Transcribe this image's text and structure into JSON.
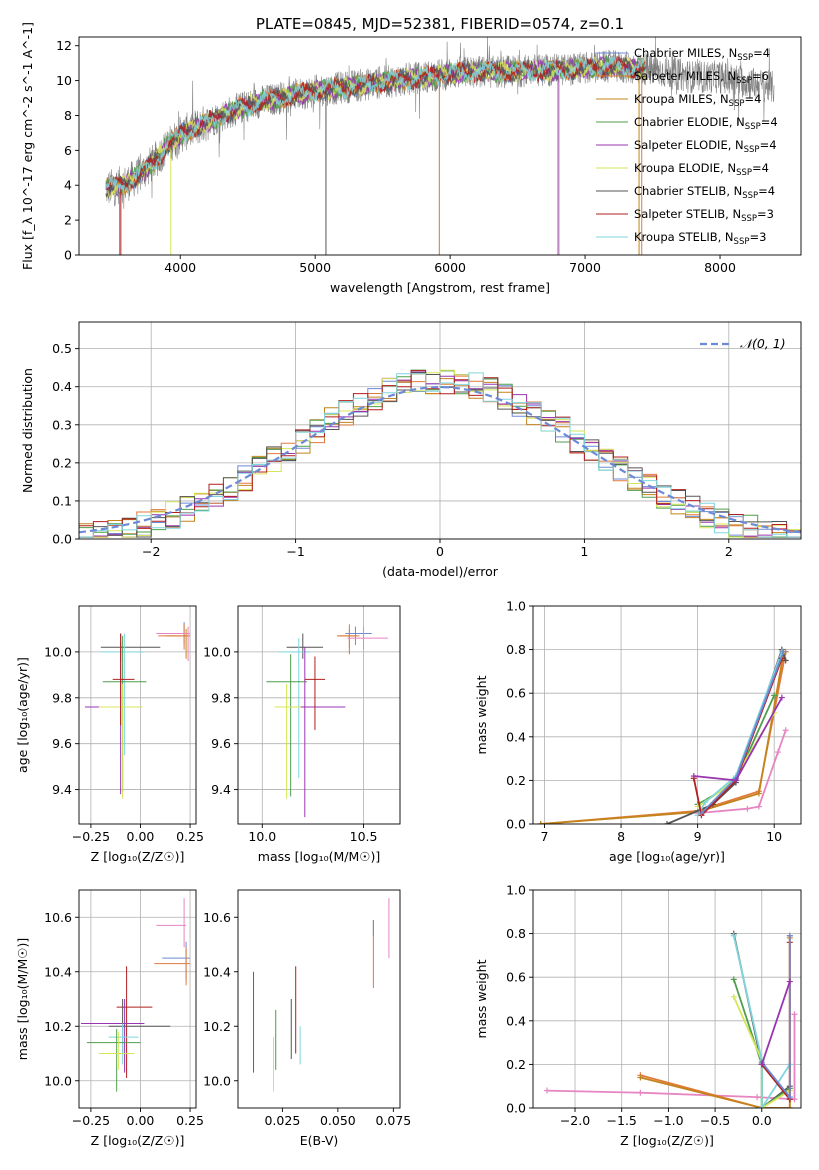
{
  "figure_title": "PLATE=0845, MJD=52381, FIBERID=0574, z=0.1",
  "colors": [
    "#6c8ad6",
    "#e07a3a",
    "#c4841c",
    "#4f9e4b",
    "#9a35b0",
    "#d6e55a",
    "#555555",
    "#b21f1f",
    "#7fd6de",
    "#e685c2",
    "#808080"
  ],
  "chart_data": [
    {
      "id": "spectrum",
      "type": "line",
      "title": "",
      "xlabel": "wavelength [Angstrom, rest frame]",
      "ylabel": "Flux [f_λ 10^-17 erg cm^-2 s^-1 A^-1]",
      "xlim": [
        3250,
        8600
      ],
      "ylim": [
        0,
        12.5
      ],
      "xticks": [
        4000,
        5000,
        6000,
        7000,
        8000
      ],
      "yticks": [
        0,
        2,
        4,
        6,
        8,
        10,
        12
      ],
      "grid": false,
      "legend": "right",
      "data_note_continuum_x": [
        3450,
        3600,
        3700,
        3800,
        3900,
        4000,
        4200,
        4400,
        4600,
        4800,
        5000,
        5200,
        5400,
        5600,
        5800,
        6000,
        6200,
        6400,
        6600,
        6800,
        7000,
        7200,
        7400,
        7600,
        7800,
        8000,
        8200,
        8400
      ],
      "data_note_continuum_y": [
        3.8,
        4.1,
        4.6,
        5.3,
        6.2,
        6.9,
        7.6,
        8.3,
        8.8,
        9.1,
        9.4,
        9.6,
        9.8,
        10.0,
        10.2,
        10.4,
        10.5,
        10.5,
        10.6,
        10.6,
        10.7,
        10.8,
        10.7,
        10.5,
        10.2,
        10.2,
        9.9,
        9.6
      ],
      "series": [
        {
          "name": "Chabrier MILES, N_SSP=4"
        },
        {
          "name": "Salpeter MILES, N_SSP=6"
        },
        {
          "name": "Kroupa MILES, N_SSP=4"
        },
        {
          "name": "Chabrier ELODIE, N_SSP=4"
        },
        {
          "name": "Salpeter ELODIE, N_SSP=4"
        },
        {
          "name": "Kroupa ELODIE, N_SSP=4"
        },
        {
          "name": "Chabrier STELIB, N_SSP=4"
        },
        {
          "name": "Salpeter STELIB, N_SSP=3"
        },
        {
          "name": "Kroupa STELIB, N_SSP=3"
        }
      ]
    },
    {
      "id": "residuals",
      "type": "line",
      "xlabel": "(data-model)/error",
      "ylabel": "Normed distribution",
      "xlim": [
        -2.5,
        2.5
      ],
      "ylim": [
        0,
        0.57
      ],
      "xticks": [
        -2,
        -1,
        0,
        1,
        2
      ],
      "yticks": [
        0.0,
        0.1,
        0.2,
        0.3,
        0.4,
        0.5
      ],
      "grid": true,
      "legend_label": "𝒩(0, 1)",
      "legend": "top-right"
    },
    {
      "id": "age_vs_Z",
      "type": "scatter",
      "xlabel": "Z [log₁₀(Z/Z☉)]",
      "ylabel": "age  [log₁₀(age/yr)]",
      "xlim": [
        -0.31,
        0.28
      ],
      "ylim": [
        9.25,
        10.2
      ],
      "xticks": [
        -0.25,
        0.0,
        0.25
      ],
      "yticks": [
        9.4,
        9.6,
        9.8,
        10.0
      ],
      "grid": true,
      "points": [
        {
          "x": 0.22,
          "y": 10.08,
          "xerr": [
            0.12,
            0.02
          ],
          "yerr": [
            0.05,
            0.05
          ],
          "c": 0
        },
        {
          "x": 0.23,
          "y": 10.07,
          "xerr": [
            0.1,
            0.02
          ],
          "yerr": [
            0.1,
            0.03
          ],
          "c": 2
        },
        {
          "x": 0.22,
          "y": 10.07,
          "xerr": [
            0.13,
            0.02
          ],
          "yerr": [
            0.06,
            0.05
          ],
          "c": 1
        },
        {
          "x": 0.24,
          "y": 10.08,
          "xerr": [
            0.16,
            0.01
          ],
          "yerr": [
            0.12,
            0.03
          ],
          "c": 9
        },
        {
          "x": -0.1,
          "y": 10.02,
          "xerr": [
            0.1,
            0.2
          ],
          "yerr": [
            0.06,
            0.06
          ],
          "c": 6
        },
        {
          "x": -0.08,
          "y": 10.0,
          "xerr": [
            0.12,
            0.1
          ],
          "yerr": [
            0.45,
            0.08
          ],
          "c": 8
        },
        {
          "x": -0.09,
          "y": 9.87,
          "xerr": [
            0.1,
            0.12
          ],
          "yerr": [
            0.48,
            0.2
          ],
          "c": 3
        },
        {
          "x": -0.1,
          "y": 9.76,
          "xerr": [
            0.18,
            0.07
          ],
          "yerr": [
            0.38,
            0.28
          ],
          "c": 4
        },
        {
          "x": -0.09,
          "y": 9.76,
          "xerr": [
            0.12,
            0.1
          ],
          "yerr": [
            0.4,
            0.1
          ],
          "c": 5
        },
        {
          "x": -0.1,
          "y": 9.88,
          "xerr": [
            0.04,
            0.07
          ],
          "yerr": [
            0.2,
            0.2
          ],
          "c": 7
        }
      ]
    },
    {
      "id": "age_vs_mass",
      "type": "scatter",
      "xlabel": "mass [log₁₀(M/M☉)]",
      "ylabel": "",
      "xlim": [
        9.88,
        10.68
      ],
      "ylim": [
        9.25,
        10.2
      ],
      "xticks": [
        10.0,
        10.5
      ],
      "yticks": [
        9.4,
        9.6,
        9.8,
        10.0
      ],
      "grid": true,
      "points": [
        {
          "x": 10.46,
          "y": 10.08,
          "xerr": [
            0.05,
            0.08
          ],
          "yerr": [
            0.05,
            0.03
          ],
          "c": 0
        },
        {
          "x": 10.43,
          "y": 10.07,
          "xerr": [
            0.06,
            0.03
          ],
          "yerr": [
            0.08,
            0.03
          ],
          "c": 2
        },
        {
          "x": 10.43,
          "y": 10.07,
          "xerr": [
            0.06,
            0.05
          ],
          "yerr": [
            0.05,
            0.05
          ],
          "c": 1
        },
        {
          "x": 10.5,
          "y": 10.06,
          "xerr": [
            0.08,
            0.12
          ],
          "yerr": [
            0.05,
            0.05
          ],
          "c": 9
        },
        {
          "x": 10.2,
          "y": 10.02,
          "xerr": [
            0.08,
            0.1
          ],
          "yerr": [
            0.05,
            0.06
          ],
          "c": 6
        },
        {
          "x": 10.18,
          "y": 10.0,
          "xerr": [
            0.1,
            0.06
          ],
          "yerr": [
            0.55,
            0.06
          ],
          "c": 8
        },
        {
          "x": 10.14,
          "y": 9.87,
          "xerr": [
            0.12,
            0.08
          ],
          "yerr": [
            0.5,
            0.12
          ],
          "c": 3
        },
        {
          "x": 10.21,
          "y": 9.76,
          "xerr": [
            0.08,
            0.2
          ],
          "yerr": [
            0.48,
            0.26
          ],
          "c": 4
        },
        {
          "x": 10.12,
          "y": 9.76,
          "xerr": [
            0.06,
            0.07
          ],
          "yerr": [
            0.4,
            0.1
          ],
          "c": 5
        },
        {
          "x": 10.26,
          "y": 9.88,
          "xerr": [
            0.05,
            0.05
          ],
          "yerr": [
            0.22,
            0.1
          ],
          "c": 7
        }
      ]
    },
    {
      "id": "weight_vs_age",
      "type": "line",
      "xlabel": "age  [log₁₀(age/yr)]",
      "ylabel": "mass weight",
      "xlim": [
        6.85,
        10.35
      ],
      "ylim": [
        0,
        1.0
      ],
      "xticks": [
        7,
        8,
        9,
        10
      ],
      "yticks": [
        0.0,
        0.2,
        0.4,
        0.6,
        0.8,
        1.0
      ],
      "grid": true,
      "series": [
        {
          "c": 1,
          "x": [
            6.95,
            9.0,
            9.8,
            10.15
          ],
          "y": [
            0.0,
            0.06,
            0.15,
            0.79
          ]
        },
        {
          "c": 2,
          "x": [
            6.95,
            9.0,
            9.8,
            10.12
          ],
          "y": [
            0.0,
            0.055,
            0.14,
            0.78
          ]
        },
        {
          "c": 9,
          "x": [
            9.0,
            9.65,
            9.8,
            10.05,
            10.15
          ],
          "y": [
            0.05,
            0.07,
            0.08,
            0.33,
            0.43
          ]
        },
        {
          "c": 6,
          "x": [
            8.6,
            9.0,
            9.2,
            9.5,
            10.1,
            10.15
          ],
          "y": [
            0.0,
            0.06,
            0.09,
            0.19,
            0.8,
            0.75
          ]
        },
        {
          "c": 3,
          "x": [
            9.0,
            9.3,
            9.5,
            10.0
          ],
          "y": [
            0.09,
            0.15,
            0.2,
            0.59
          ]
        },
        {
          "c": 5,
          "x": [
            9.0,
            9.3,
            9.5,
            10.0
          ],
          "y": [
            0.08,
            0.15,
            0.22,
            0.51
          ]
        },
        {
          "c": 8,
          "x": [
            9.0,
            9.1,
            9.5,
            10.1
          ],
          "y": [
            0.04,
            0.1,
            0.22,
            0.79
          ]
        },
        {
          "c": 7,
          "x": [
            8.95,
            9.05,
            9.5,
            10.1
          ],
          "y": [
            0.21,
            0.04,
            0.2,
            0.76
          ]
        },
        {
          "c": 0,
          "x": [
            9.05,
            9.5,
            10.12
          ],
          "y": [
            0.05,
            0.21,
            0.79
          ]
        },
        {
          "c": 4,
          "x": [
            8.95,
            9.5,
            10.1
          ],
          "y": [
            0.22,
            0.2,
            0.58
          ]
        }
      ]
    },
    {
      "id": "mass_vs_Z",
      "type": "scatter",
      "xlabel": "Z [log₁₀(Z/Z☉)]",
      "ylabel": "mass [log₁₀(M/M☉)]",
      "xlim": [
        -0.31,
        0.28
      ],
      "ylim": [
        9.9,
        10.7
      ],
      "xticks": [
        -0.25,
        0.0,
        0.25
      ],
      "yticks": [
        10.0,
        10.2,
        10.4,
        10.6
      ],
      "grid": true,
      "points": [
        {
          "x": 0.23,
          "y": 10.45,
          "xerr": [
            0.12,
            0.02
          ],
          "yerr": [
            0.08,
            0.06
          ],
          "c": 0
        },
        {
          "x": 0.23,
          "y": 10.43,
          "xerr": [
            0.16,
            0.02
          ],
          "yerr": [
            0.08,
            0.06
          ],
          "c": 1
        },
        {
          "x": 0.22,
          "y": 10.57,
          "xerr": [
            0.14,
            0.01
          ],
          "yerr": [
            0.08,
            0.1
          ],
          "c": 9
        },
        {
          "x": -0.07,
          "y": 10.27,
          "xerr": [
            0.05,
            0.13
          ],
          "yerr": [
            0.26,
            0.15
          ],
          "c": 7
        },
        {
          "x": -0.08,
          "y": 10.21,
          "xerr": [
            0.22,
            0.1
          ],
          "yerr": [
            0.18,
            0.09
          ],
          "c": 4
        },
        {
          "x": -0.09,
          "y": 10.2,
          "xerr": [
            0.07,
            0.24
          ],
          "yerr": [
            0.1,
            0.1
          ],
          "c": 6
        },
        {
          "x": -0.09,
          "y": 10.16,
          "xerr": [
            0.07,
            0.08
          ],
          "yerr": [
            0.1,
            0.05
          ],
          "c": 8
        },
        {
          "x": -0.12,
          "y": 10.14,
          "xerr": [
            0.15,
            0.12
          ],
          "yerr": [
            0.18,
            0.05
          ],
          "c": 3
        },
        {
          "x": -0.11,
          "y": 10.1,
          "xerr": [
            0.1,
            0.08
          ],
          "yerr": [
            0.06,
            0.08
          ],
          "c": 5
        }
      ]
    },
    {
      "id": "mass_vs_ebv",
      "type": "scatter",
      "xlabel": "E(B-V)",
      "ylabel": "",
      "xlim": [
        0.005,
        0.078
      ],
      "ylim": [
        9.9,
        10.7
      ],
      "xticks": [
        0.025,
        0.05,
        0.075
      ],
      "yticks": [
        10.0,
        10.2,
        10.4,
        10.6
      ],
      "grid": false,
      "points": [
        {
          "x": 0.012,
          "y": 10.2,
          "yerr": [
            0.17,
            0.2
          ],
          "c": 4
        },
        {
          "x": 0.021,
          "y": 10.1,
          "yerr": [
            0.14,
            0.06
          ],
          "c": 5
        },
        {
          "x": 0.022,
          "y": 10.14,
          "yerr": [
            0.1,
            0.12
          ],
          "c": 3
        },
        {
          "x": 0.029,
          "y": 10.2,
          "yerr": [
            0.12,
            0.1
          ],
          "c": 6
        },
        {
          "x": 0.031,
          "y": 10.27,
          "yerr": [
            0.17,
            0.15
          ],
          "c": 7
        },
        {
          "x": 0.033,
          "y": 10.16,
          "yerr": [
            0.1,
            0.04
          ],
          "c": 8
        },
        {
          "x": 0.066,
          "y": 10.45,
          "yerr": [
            0.11,
            0.14
          ],
          "c": 1
        },
        {
          "x": 0.066,
          "y": 10.55,
          "yerr": [
            0.02,
            0.04
          ],
          "c": 0
        },
        {
          "x": 0.073,
          "y": 10.56,
          "yerr": [
            0.11,
            0.11
          ],
          "c": 9
        }
      ]
    },
    {
      "id": "weight_vs_Z",
      "type": "line",
      "xlabel": "Z [log₁₀(Z/Z☉)]",
      "ylabel": "mass weight",
      "xlim": [
        -2.45,
        0.42
      ],
      "ylim": [
        0,
        1.0
      ],
      "xticks": [
        -2.0,
        -1.5,
        -1.0,
        -0.5,
        0.0
      ],
      "yticks": [
        0.0,
        0.2,
        0.4,
        0.6,
        0.8,
        1.0
      ],
      "grid": true,
      "series": [
        {
          "c": 9,
          "x": [
            -2.3,
            -1.3,
            -0.05,
            0.35,
            0.35
          ],
          "y": [
            0.08,
            0.07,
            0.05,
            0.04,
            0.43
          ]
        },
        {
          "c": 1,
          "x": [
            -1.3,
            0.0,
            0.0,
            0.3,
            0.3
          ],
          "y": [
            0.15,
            0.0,
            0.0,
            0.0,
            0.79
          ]
        },
        {
          "c": 2,
          "x": [
            -1.3,
            0.0,
            0.3,
            0.3
          ],
          "y": [
            0.14,
            0.0,
            0.0,
            0.78
          ]
        },
        {
          "c": 6,
          "x": [
            -0.3,
            0.0,
            0.0,
            0.3
          ],
          "y": [
            0.8,
            0.2,
            0.0,
            0.1
          ]
        },
        {
          "c": 3,
          "x": [
            -0.3,
            0.0,
            0.0,
            0.3
          ],
          "y": [
            0.59,
            0.2,
            0.0,
            0.09
          ]
        },
        {
          "c": 5,
          "x": [
            -0.3,
            0.0,
            0.0,
            0.3
          ],
          "y": [
            0.51,
            0.22,
            0.0,
            0.08
          ]
        },
        {
          "c": 8,
          "x": [
            -0.3,
            0.0,
            0.0,
            0.3
          ],
          "y": [
            0.79,
            0.22,
            0.0,
            0.2
          ]
        },
        {
          "c": 7,
          "x": [
            0.0,
            0.3,
            0.3
          ],
          "y": [
            0.2,
            0.04,
            0.76
          ]
        },
        {
          "c": 0,
          "x": [
            0.0,
            0.3,
            0.3
          ],
          "y": [
            0.21,
            0.05,
            0.79
          ]
        },
        {
          "c": 4,
          "x": [
            0.0,
            0.3
          ],
          "y": [
            0.2,
            0.58
          ]
        }
      ]
    }
  ]
}
